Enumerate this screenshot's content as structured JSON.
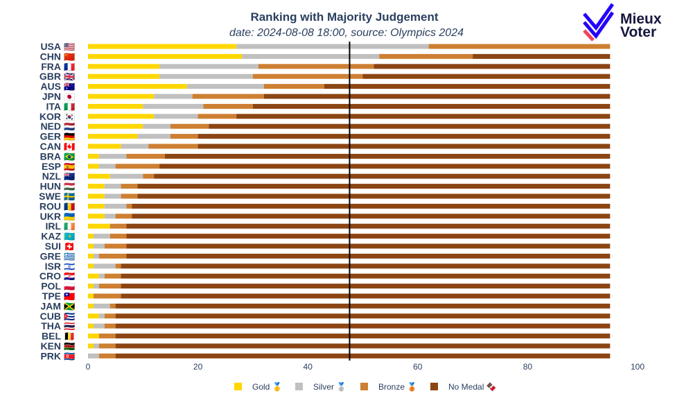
{
  "chart_data": {
    "type": "bar",
    "orientation": "horizontal",
    "stacked": true,
    "title": "Ranking with Majority Judgement",
    "subtitle": "date: 2024-08-08 18:00, source: Olympics 2024",
    "xlim": [
      0,
      100
    ],
    "x_ticks": [
      "0",
      "20",
      "40",
      "60",
      "80",
      "100"
    ],
    "median_line": 47.6,
    "legend_position": "bottom",
    "categories": [
      "USA",
      "CHN",
      "FRA",
      "GBR",
      "AUS",
      "JPN",
      "ITA",
      "KOR",
      "NED",
      "GER",
      "CAN",
      "BRA",
      "ESP",
      "NZL",
      "HUN",
      "SWE",
      "ROU",
      "UKR",
      "IRL",
      "KAZ",
      "SUI",
      "GRE",
      "ISR",
      "CRO",
      "POL",
      "TPE",
      "JAM",
      "CUB",
      "THA",
      "BEL",
      "KEN",
      "PRK"
    ],
    "flags": [
      "🇺🇸",
      "🇨🇳",
      "🇫🇷",
      "🇬🇧",
      "🇦🇺",
      "🇯🇵",
      "🇮🇹",
      "🇰🇷",
      "🇳🇱",
      "🇩🇪",
      "🇨🇦",
      "🇧🇷",
      "🇪🇸",
      "🇳🇿",
      "🇭🇺",
      "🇸🇪",
      "🇷🇴",
      "🇺🇦",
      "🇮🇪",
      "🇰🇿",
      "🇨🇭",
      "🇬🇷",
      "🇮🇱",
      "🇭🇷",
      "🇵🇱",
      "🇹🇼",
      "🇯🇲",
      "🇨🇺",
      "🇹🇭",
      "🇧🇪",
      "🇰🇪",
      "🇰🇵"
    ],
    "series": [
      {
        "name": "Gold 🥇",
        "color": "#FFD700",
        "values": [
          27,
          28,
          13,
          13,
          18,
          12,
          10,
          12,
          10,
          9,
          6,
          2,
          2,
          4,
          3,
          3,
          3,
          3,
          4,
          1,
          1,
          1,
          1,
          2,
          1,
          1,
          1,
          2,
          1,
          2,
          1,
          0
        ]
      },
      {
        "name": "Silver 🥈",
        "color": "#C0C0C0",
        "values": [
          35,
          25,
          18,
          17,
          14,
          7,
          11,
          8,
          5,
          6,
          5,
          5,
          3,
          6,
          3,
          3,
          4,
          2,
          0,
          3,
          2,
          1,
          4,
          1,
          1,
          0,
          3,
          1,
          2,
          0,
          1,
          2
        ]
      },
      {
        "name": "Bronze 🥉",
        "color": "#CD7F32",
        "values": [
          33,
          17,
          21,
          20,
          11,
          13,
          9,
          7,
          7,
          5,
          9,
          7,
          8,
          2,
          3,
          3,
          1,
          3,
          3,
          3,
          4,
          5,
          1,
          3,
          4,
          5,
          1,
          2,
          2,
          3,
          3,
          3
        ]
      },
      {
        "name": "No Medal 🍫",
        "color": "#8B4513",
        "values": [
          0,
          25,
          43,
          45,
          52,
          63,
          65,
          68,
          73,
          75,
          75,
          81,
          82,
          83,
          86,
          86,
          87,
          87,
          88,
          88,
          88,
          88,
          89,
          89,
          89,
          89,
          90,
          90,
          90,
          90,
          90,
          90
        ]
      }
    ]
  },
  "logo": {
    "line1": "Mieux",
    "line2": "Voter"
  }
}
